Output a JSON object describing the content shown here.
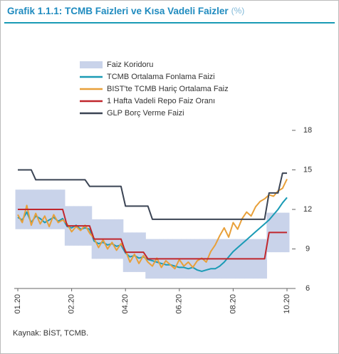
{
  "chart_data": {
    "type": "line",
    "title": "Grafik 1.1.1: TCMB Faizleri ve Kısa Vadeli Faizler",
    "title_unit": "(%)",
    "source": "Kaynak: BİST, TCMB.",
    "categories": [
      "01.20",
      null,
      null,
      null,
      null,
      null,
      null,
      null,
      null,
      null,
      null,
      null,
      "02.20",
      null,
      null,
      null,
      null,
      null,
      null,
      null,
      null,
      null,
      null,
      null,
      "04.20",
      null,
      null,
      null,
      null,
      null,
      null,
      null,
      null,
      null,
      null,
      null,
      "06.20",
      null,
      null,
      null,
      null,
      null,
      null,
      null,
      null,
      null,
      null,
      null,
      "08.20",
      null,
      null,
      null,
      null,
      null,
      null,
      null,
      null,
      null,
      null,
      null,
      "10.20"
    ],
    "ylim": [
      6,
      18
    ],
    "yticks": [
      6,
      9,
      12,
      15,
      18
    ],
    "band": {
      "name": "Faiz Koridoru",
      "color": "#c9d3ea",
      "low": [
        10.5,
        10.5,
        10.5,
        10.5,
        10.5,
        10.5,
        10.5,
        10.5,
        10.5,
        10.5,
        10.5,
        9.25,
        9.25,
        9.25,
        9.25,
        9.25,
        9.25,
        8.25,
        8.25,
        8.25,
        8.25,
        8.25,
        8.25,
        8.25,
        7.25,
        7.25,
        7.25,
        7.25,
        7.25,
        6.75,
        6.75,
        6.75,
        6.75,
        6.75,
        6.75,
        6.75,
        6.75,
        6.75,
        6.75,
        6.75,
        6.75,
        6.75,
        6.75,
        6.75,
        6.75,
        6.75,
        6.75,
        6.75,
        6.75,
        6.75,
        6.75,
        6.75,
        6.75,
        6.75,
        6.75,
        6.75,
        8.75,
        8.75,
        8.75,
        8.75,
        8.75
      ],
      "high": [
        13.5,
        13.5,
        13.5,
        13.5,
        13.5,
        13.5,
        13.5,
        13.5,
        13.5,
        13.5,
        13.5,
        12.25,
        12.25,
        12.25,
        12.25,
        12.25,
        12.25,
        11.25,
        11.25,
        11.25,
        11.25,
        11.25,
        11.25,
        11.25,
        10.25,
        10.25,
        10.25,
        10.25,
        10.25,
        9.75,
        9.75,
        9.75,
        9.75,
        9.75,
        9.75,
        9.75,
        9.75,
        9.75,
        9.75,
        9.75,
        9.75,
        9.75,
        9.75,
        9.75,
        9.75,
        9.75,
        9.75,
        9.75,
        9.75,
        9.75,
        9.75,
        9.75,
        9.75,
        9.75,
        9.75,
        9.75,
        11.75,
        11.75,
        11.75,
        11.75,
        11.75
      ]
    },
    "series": [
      {
        "name": "TCMB Ortalama Fonlama Faizi",
        "color": "#1a9bb5",
        "values": [
          11.4,
          11.2,
          11.8,
          11.0,
          11.5,
          11.3,
          11.0,
          11.2,
          11.4,
          11.1,
          11.3,
          10.7,
          10.6,
          10.8,
          10.5,
          10.6,
          10.5,
          9.6,
          9.4,
          9.5,
          9.3,
          9.4,
          9.2,
          9.3,
          8.7,
          8.4,
          8.5,
          8.3,
          8.4,
          8.2,
          8.1,
          8.0,
          7.9,
          7.8,
          7.8,
          7.7,
          7.6,
          7.6,
          7.5,
          7.6,
          7.4,
          7.3,
          7.4,
          7.5,
          7.5,
          7.7,
          8.0,
          8.4,
          8.8,
          9.1,
          9.4,
          9.7,
          10.0,
          10.3,
          10.6,
          10.9,
          11.2,
          11.6,
          12.0,
          12.5,
          12.9
        ]
      },
      {
        "name": "BIST'te TCMB Hariç Ortalama Faiz",
        "color": "#e8a03a",
        "values": [
          11.6,
          11.0,
          12.3,
          10.8,
          11.7,
          10.9,
          11.5,
          10.7,
          11.6,
          11.0,
          11.2,
          10.9,
          10.3,
          10.7,
          10.4,
          10.8,
          10.2,
          9.8,
          9.1,
          9.7,
          9.0,
          9.5,
          8.9,
          9.4,
          8.9,
          8.0,
          8.6,
          7.9,
          8.5,
          8.0,
          7.7,
          8.3,
          7.6,
          8.1,
          7.8,
          7.5,
          8.2,
          7.7,
          8.0,
          7.6,
          8.1,
          8.3,
          8.0,
          8.8,
          9.3,
          10.0,
          10.6,
          9.9,
          11.0,
          10.5,
          11.3,
          11.8,
          11.5,
          12.2,
          12.6,
          12.8,
          13.1,
          13.0,
          13.4,
          13.6,
          14.3
        ]
      },
      {
        "name": "1 Hafta Vadeli Repo Faiz Oranı",
        "color": "#c0272d",
        "values": [
          12,
          12,
          12,
          12,
          12,
          12,
          12,
          12,
          12,
          12,
          12,
          10.75,
          10.75,
          10.75,
          10.75,
          10.75,
          10.75,
          9.75,
          9.75,
          9.75,
          9.75,
          9.75,
          9.75,
          9.75,
          8.75,
          8.75,
          8.75,
          8.75,
          8.75,
          8.25,
          8.25,
          8.25,
          8.25,
          8.25,
          8.25,
          8.25,
          8.25,
          8.25,
          8.25,
          8.25,
          8.25,
          8.25,
          8.25,
          8.25,
          8.25,
          8.25,
          8.25,
          8.25,
          8.25,
          8.25,
          8.25,
          8.25,
          8.25,
          8.25,
          8.25,
          8.25,
          10.25,
          10.25,
          10.25,
          10.25,
          10.25
        ]
      },
      {
        "name": "GLP Borç Verme Faizi",
        "color": "#3b4454",
        "values": [
          15,
          15,
          15,
          15,
          14.25,
          14.25,
          14.25,
          14.25,
          14.25,
          14.25,
          14.25,
          14.25,
          14.25,
          14.25,
          14.25,
          14.25,
          13.75,
          13.75,
          13.75,
          13.75,
          13.75,
          13.75,
          13.75,
          13.75,
          12.25,
          12.25,
          12.25,
          12.25,
          12.25,
          12.25,
          11.25,
          11.25,
          11.25,
          11.25,
          11.25,
          11.25,
          11.25,
          11.25,
          11.25,
          11.25,
          11.25,
          11.25,
          11.25,
          11.25,
          11.25,
          11.25,
          11.25,
          11.25,
          11.25,
          11.25,
          11.25,
          11.25,
          11.25,
          11.25,
          11.25,
          11.25,
          13.25,
          13.25,
          13.25,
          14.75,
          14.75
        ]
      }
    ]
  }
}
